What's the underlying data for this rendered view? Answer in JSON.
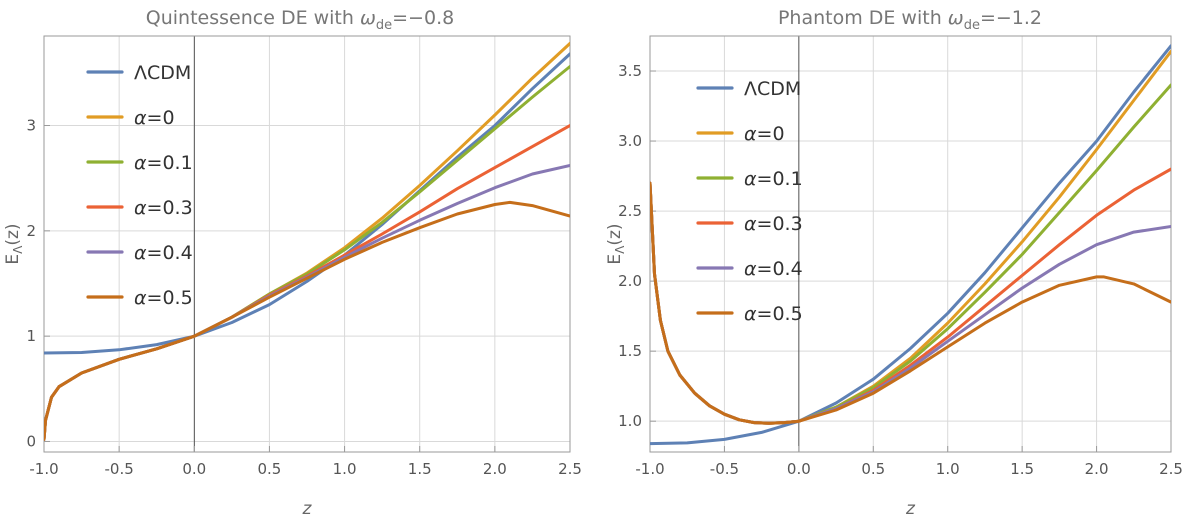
{
  "chart_data": [
    {
      "type": "line",
      "title": {
        "prefix": "Quintessence DE with ",
        "symbol": "ω",
        "subscript": "de",
        "suffix": "=−0.8"
      },
      "xlabel": "z",
      "ylabel": {
        "main": "E",
        "sub": "Λ",
        "arg": "(z)"
      },
      "xlim": [
        -1.0,
        2.5
      ],
      "ylim": [
        -0.1,
        3.85
      ],
      "xticks": [
        -1.0,
        -0.5,
        0.0,
        0.5,
        1.0,
        1.5,
        2.0,
        2.5
      ],
      "xtick_labels": [
        "-1.0",
        "-0.5",
        "0.0",
        "0.5",
        "1.0",
        "1.5",
        "2.0",
        "2.5"
      ],
      "yticks": [
        0,
        1,
        2,
        3
      ],
      "ytick_labels": [
        "0",
        "1",
        "2",
        "3"
      ],
      "grid": true,
      "legend_position": "top-left",
      "series": [
        {
          "name": "ΛCDM",
          "color": "#5e81b5",
          "x": [
            -1.0,
            -0.75,
            -0.5,
            -0.25,
            0.0,
            0.25,
            0.5,
            0.75,
            1.0,
            1.25,
            1.5,
            1.75,
            2.0,
            2.25,
            2.5
          ],
          "y": [
            0.84,
            0.845,
            0.87,
            0.92,
            1.0,
            1.13,
            1.3,
            1.52,
            1.77,
            2.06,
            2.38,
            2.7,
            3.0,
            3.35,
            3.68
          ]
        },
        {
          "name": "α=0",
          "color": "#e19c24",
          "x": [
            -1.0,
            -0.99,
            -0.95,
            -0.9,
            -0.75,
            -0.5,
            -0.25,
            0.0,
            0.25,
            0.5,
            0.75,
            1.0,
            1.25,
            1.5,
            1.75,
            2.0,
            2.25,
            2.5
          ],
          "y": [
            0.02,
            0.2,
            0.42,
            0.52,
            0.65,
            0.78,
            0.88,
            1.0,
            1.18,
            1.4,
            1.6,
            1.84,
            2.12,
            2.43,
            2.76,
            3.1,
            3.45,
            3.78
          ]
        },
        {
          "name": "α=0.1",
          "color": "#8fb032",
          "x": [
            -1.0,
            -0.99,
            -0.95,
            -0.9,
            -0.75,
            -0.5,
            -0.25,
            0.0,
            0.25,
            0.5,
            0.75,
            1.0,
            1.25,
            1.5,
            1.75,
            2.0,
            2.25,
            2.5
          ],
          "y": [
            0.02,
            0.2,
            0.42,
            0.52,
            0.65,
            0.78,
            0.88,
            1.0,
            1.18,
            1.4,
            1.59,
            1.82,
            2.08,
            2.37,
            2.67,
            2.97,
            3.27,
            3.56
          ]
        },
        {
          "name": "α=0.3",
          "color": "#eb6235",
          "x": [
            -1.0,
            -0.99,
            -0.95,
            -0.9,
            -0.75,
            -0.5,
            -0.25,
            0.0,
            0.25,
            0.5,
            0.75,
            1.0,
            1.25,
            1.5,
            1.75,
            2.0,
            2.25,
            2.5
          ],
          "y": [
            0.02,
            0.2,
            0.42,
            0.52,
            0.65,
            0.78,
            0.88,
            1.0,
            1.18,
            1.39,
            1.57,
            1.77,
            1.97,
            2.18,
            2.4,
            2.6,
            2.8,
            3.0
          ]
        },
        {
          "name": "α=0.4",
          "color": "#8778b3",
          "x": [
            -1.0,
            -0.99,
            -0.95,
            -0.9,
            -0.75,
            -0.5,
            -0.25,
            0.0,
            0.25,
            0.5,
            0.75,
            1.0,
            1.25,
            1.5,
            1.75,
            2.0,
            2.25,
            2.5
          ],
          "y": [
            0.02,
            0.2,
            0.42,
            0.52,
            0.65,
            0.78,
            0.88,
            1.0,
            1.18,
            1.38,
            1.56,
            1.75,
            1.93,
            2.1,
            2.26,
            2.41,
            2.54,
            2.62
          ]
        },
        {
          "name": "α=0.5",
          "color": "#c56e1a",
          "x": [
            -1.0,
            -0.99,
            -0.95,
            -0.9,
            -0.75,
            -0.5,
            -0.25,
            0.0,
            0.25,
            0.5,
            0.75,
            1.0,
            1.25,
            1.5,
            1.75,
            2.0,
            2.1,
            2.25,
            2.5
          ],
          "y": [
            0.02,
            0.2,
            0.42,
            0.52,
            0.65,
            0.78,
            0.88,
            1.0,
            1.18,
            1.37,
            1.55,
            1.73,
            1.89,
            2.03,
            2.16,
            2.25,
            2.27,
            2.24,
            2.14
          ]
        }
      ]
    },
    {
      "type": "line",
      "title": {
        "prefix": "Phantom DE with ",
        "symbol": "ω",
        "subscript": "de",
        "suffix": "=−1.2"
      },
      "xlabel": "z",
      "ylabel": {
        "main": "E",
        "sub": "Λ",
        "arg": "(z)"
      },
      "xlim": [
        -1.0,
        2.5
      ],
      "ylim": [
        0.78,
        3.75
      ],
      "xticks": [
        -1.0,
        -0.5,
        0.0,
        0.5,
        1.0,
        1.5,
        2.0,
        2.5
      ],
      "xtick_labels": [
        "-1.0",
        "-0.5",
        "0.0",
        "0.5",
        "1.0",
        "1.5",
        "2.0",
        "2.5"
      ],
      "yticks": [
        1.0,
        1.5,
        2.0,
        2.5,
        3.0,
        3.5
      ],
      "ytick_labels": [
        "1.0",
        "1.5",
        "2.0",
        "2.5",
        "3.0",
        "3.5"
      ],
      "grid": true,
      "legend_position": "top-left",
      "series": [
        {
          "name": "ΛCDM",
          "color": "#5e81b5",
          "x": [
            -1.0,
            -0.75,
            -0.5,
            -0.25,
            0.0,
            0.25,
            0.5,
            0.75,
            1.0,
            1.25,
            1.5,
            1.75,
            2.0,
            2.25,
            2.5
          ],
          "y": [
            0.84,
            0.845,
            0.87,
            0.92,
            1.0,
            1.13,
            1.3,
            1.52,
            1.77,
            2.06,
            2.38,
            2.7,
            3.0,
            3.35,
            3.68
          ]
        },
        {
          "name": "α=0",
          "color": "#e19c24",
          "x": [
            -1.0,
            -0.97,
            -0.93,
            -0.88,
            -0.8,
            -0.7,
            -0.6,
            -0.5,
            -0.4,
            -0.3,
            -0.2,
            -0.1,
            0.0,
            0.25,
            0.5,
            0.75,
            1.0,
            1.25,
            1.5,
            1.75,
            2.0,
            2.25,
            2.5
          ],
          "y": [
            2.7,
            2.05,
            1.72,
            1.5,
            1.33,
            1.2,
            1.11,
            1.05,
            1.01,
            0.99,
            0.985,
            0.99,
            1.0,
            1.1,
            1.25,
            1.45,
            1.7,
            1.98,
            2.28,
            2.6,
            2.94,
            3.29,
            3.64
          ]
        },
        {
          "name": "α=0.1",
          "color": "#8fb032",
          "x": [
            -1.0,
            -0.97,
            -0.93,
            -0.88,
            -0.8,
            -0.7,
            -0.6,
            -0.5,
            -0.4,
            -0.3,
            -0.2,
            -0.1,
            0.0,
            0.25,
            0.5,
            0.75,
            1.0,
            1.25,
            1.5,
            1.75,
            2.0,
            2.25,
            2.5
          ],
          "y": [
            2.7,
            2.05,
            1.72,
            1.5,
            1.33,
            1.2,
            1.11,
            1.05,
            1.01,
            0.99,
            0.985,
            0.99,
            1.0,
            1.1,
            1.24,
            1.43,
            1.66,
            1.92,
            2.19,
            2.49,
            2.79,
            3.1,
            3.4
          ]
        },
        {
          "name": "α=0.3",
          "color": "#eb6235",
          "x": [
            -1.0,
            -0.97,
            -0.93,
            -0.88,
            -0.8,
            -0.7,
            -0.6,
            -0.5,
            -0.4,
            -0.3,
            -0.2,
            -0.1,
            0.0,
            0.25,
            0.5,
            0.75,
            1.0,
            1.25,
            1.5,
            1.75,
            2.0,
            2.25,
            2.5
          ],
          "y": [
            2.7,
            2.05,
            1.72,
            1.5,
            1.33,
            1.2,
            1.11,
            1.05,
            1.01,
            0.99,
            0.985,
            0.99,
            1.0,
            1.09,
            1.22,
            1.4,
            1.6,
            1.82,
            2.04,
            2.26,
            2.47,
            2.65,
            2.8
          ]
        },
        {
          "name": "α=0.4",
          "color": "#8778b3",
          "x": [
            -1.0,
            -0.97,
            -0.93,
            -0.88,
            -0.8,
            -0.7,
            -0.6,
            -0.5,
            -0.4,
            -0.3,
            -0.2,
            -0.1,
            0.0,
            0.25,
            0.5,
            0.75,
            1.0,
            1.25,
            1.5,
            1.75,
            2.0,
            2.25,
            2.5
          ],
          "y": [
            2.7,
            2.05,
            1.72,
            1.5,
            1.33,
            1.2,
            1.11,
            1.05,
            1.01,
            0.99,
            0.985,
            0.99,
            1.0,
            1.09,
            1.21,
            1.38,
            1.57,
            1.76,
            1.95,
            2.12,
            2.26,
            2.35,
            2.39
          ]
        },
        {
          "name": "α=0.5",
          "color": "#c56e1a",
          "x": [
            -1.0,
            -0.97,
            -0.93,
            -0.88,
            -0.8,
            -0.7,
            -0.6,
            -0.5,
            -0.4,
            -0.3,
            -0.2,
            -0.1,
            0.0,
            0.25,
            0.5,
            0.75,
            1.0,
            1.25,
            1.5,
            1.75,
            2.0,
            2.05,
            2.25,
            2.5
          ],
          "y": [
            2.7,
            2.05,
            1.72,
            1.5,
            1.33,
            1.2,
            1.11,
            1.05,
            1.01,
            0.99,
            0.985,
            0.99,
            1.0,
            1.08,
            1.2,
            1.36,
            1.53,
            1.7,
            1.85,
            1.97,
            2.03,
            2.03,
            1.98,
            1.85
          ]
        }
      ]
    }
  ]
}
